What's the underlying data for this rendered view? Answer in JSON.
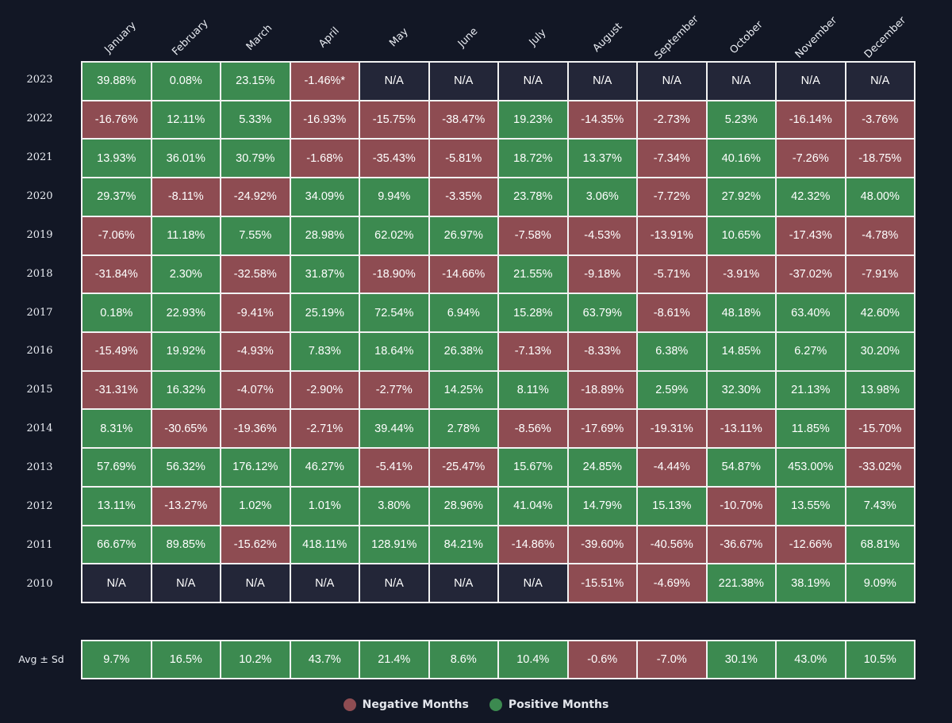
{
  "colors": {
    "positive": "#3c8a50",
    "negative": "#8e4c52",
    "na": "#232638",
    "background": "#121725"
  },
  "chart_data": {
    "type": "table",
    "columns": [
      "January",
      "February",
      "March",
      "April",
      "May",
      "June",
      "July",
      "August",
      "September",
      "October",
      "November",
      "December"
    ],
    "rows": [
      {
        "year": "2023",
        "values": [
          "39.88%",
          "0.08%",
          "23.15%",
          "-1.46%*",
          "N/A",
          "N/A",
          "N/A",
          "N/A",
          "N/A",
          "N/A",
          "N/A",
          "N/A"
        ]
      },
      {
        "year": "2022",
        "values": [
          "-16.76%",
          "12.11%",
          "5.33%",
          "-16.93%",
          "-15.75%",
          "-38.47%",
          "19.23%",
          "-14.35%",
          "-2.73%",
          "5.23%",
          "-16.14%",
          "-3.76%"
        ]
      },
      {
        "year": "2021",
        "values": [
          "13.93%",
          "36.01%",
          "30.79%",
          "-1.68%",
          "-35.43%",
          "-5.81%",
          "18.72%",
          "13.37%",
          "-7.34%",
          "40.16%",
          "-7.26%",
          "-18.75%"
        ]
      },
      {
        "year": "2020",
        "values": [
          "29.37%",
          "-8.11%",
          "-24.92%",
          "34.09%",
          "9.94%",
          "-3.35%",
          "23.78%",
          "3.06%",
          "-7.72%",
          "27.92%",
          "42.32%",
          "48.00%"
        ]
      },
      {
        "year": "2019",
        "values": [
          "-7.06%",
          "11.18%",
          "7.55%",
          "28.98%",
          "62.02%",
          "26.97%",
          "-7.58%",
          "-4.53%",
          "-13.91%",
          "10.65%",
          "-17.43%",
          "-4.78%"
        ]
      },
      {
        "year": "2018",
        "values": [
          "-31.84%",
          "2.30%",
          "-32.58%",
          "31.87%",
          "-18.90%",
          "-14.66%",
          "21.55%",
          "-9.18%",
          "-5.71%",
          "-3.91%",
          "-37.02%",
          "-7.91%"
        ]
      },
      {
        "year": "2017",
        "values": [
          "0.18%",
          "22.93%",
          "-9.41%",
          "25.19%",
          "72.54%",
          "6.94%",
          "15.28%",
          "63.79%",
          "-8.61%",
          "48.18%",
          "63.40%",
          "42.60%"
        ]
      },
      {
        "year": "2016",
        "values": [
          "-15.49%",
          "19.92%",
          "-4.93%",
          "7.83%",
          "18.64%",
          "26.38%",
          "-7.13%",
          "-8.33%",
          "6.38%",
          "14.85%",
          "6.27%",
          "30.20%"
        ]
      },
      {
        "year": "2015",
        "values": [
          "-31.31%",
          "16.32%",
          "-4.07%",
          "-2.90%",
          "-2.77%",
          "14.25%",
          "8.11%",
          "-18.89%",
          "2.59%",
          "32.30%",
          "21.13%",
          "13.98%"
        ]
      },
      {
        "year": "2014",
        "values": [
          "8.31%",
          "-30.65%",
          "-19.36%",
          "-2.71%",
          "39.44%",
          "2.78%",
          "-8.56%",
          "-17.69%",
          "-19.31%",
          "-13.11%",
          "11.85%",
          "-15.70%"
        ]
      },
      {
        "year": "2013",
        "values": [
          "57.69%",
          "56.32%",
          "176.12%",
          "46.27%",
          "-5.41%",
          "-25.47%",
          "15.67%",
          "24.85%",
          "-4.44%",
          "54.87%",
          "453.00%",
          "-33.02%"
        ]
      },
      {
        "year": "2012",
        "values": [
          "13.11%",
          "-13.27%",
          "1.02%",
          "1.01%",
          "3.80%",
          "28.96%",
          "41.04%",
          "14.79%",
          "15.13%",
          "-10.70%",
          "13.55%",
          "7.43%"
        ]
      },
      {
        "year": "2011",
        "values": [
          "66.67%",
          "89.85%",
          "-15.62%",
          "418.11%",
          "128.91%",
          "84.21%",
          "-14.86%",
          "-39.60%",
          "-40.56%",
          "-36.67%",
          "-12.66%",
          "68.81%"
        ]
      },
      {
        "year": "2010",
        "values": [
          "N/A",
          "N/A",
          "N/A",
          "N/A",
          "N/A",
          "N/A",
          "N/A",
          "-15.51%",
          "-4.69%",
          "221.38%",
          "38.19%",
          "9.09%"
        ]
      }
    ],
    "summary": {
      "label": "Avg ± Sd",
      "values": [
        "9.7%",
        "16.5%",
        "10.2%",
        "43.7%",
        "21.4%",
        "8.6%",
        "10.4%",
        "-0.6%",
        "-7.0%",
        "30.1%",
        "43.0%",
        "10.5%"
      ]
    },
    "legend": [
      {
        "label": "Negative Months",
        "color": "#8e4c52"
      },
      {
        "label": "Positive Months",
        "color": "#3c8a50"
      }
    ]
  }
}
